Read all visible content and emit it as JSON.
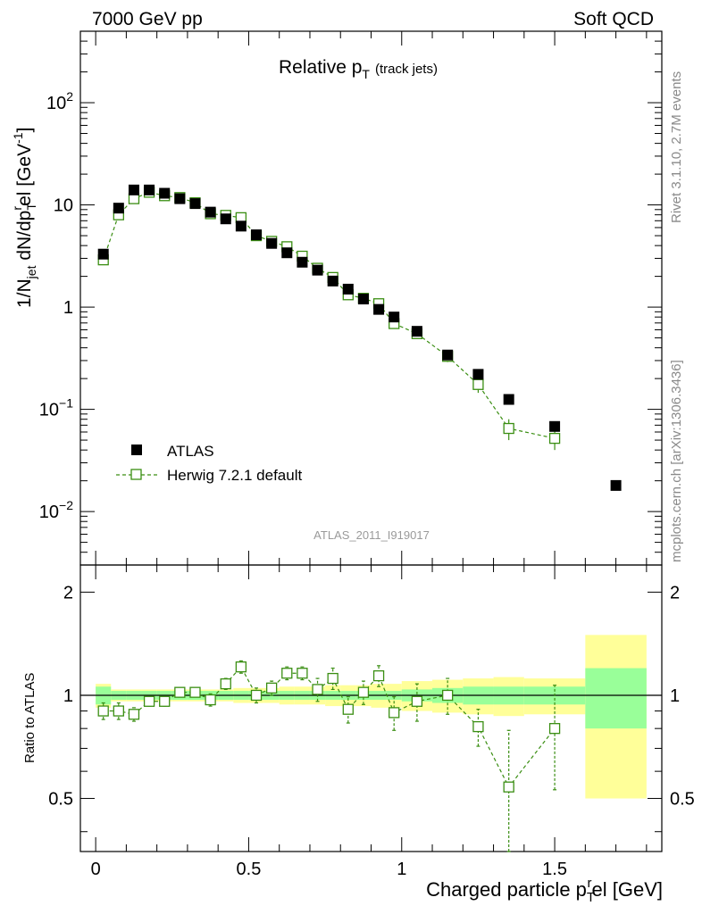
{
  "header": {
    "left": "7000 GeV pp",
    "right": "Soft QCD"
  },
  "side_labels": {
    "rivet": "Rivet 3.1.10,  2.7M events",
    "mcplots": "mcplots.cern.ch [arXiv:1306.3436]"
  },
  "main_plot": {
    "title": "Relative p",
    "title_sub": "T",
    "title_suffix": "(track jets)",
    "ylabel": "1/N",
    "ylabel_sub1": "jet",
    "ylabel_mid": " dN/dp",
    "ylabel_sub2": "T",
    "ylabel_sup2": "r",
    "ylabel_end": "el [GeV",
    "ylabel_sup3": "-1",
    "ylabel_close": "]",
    "watermark": "ATLAS_2011_I919017",
    "yticks": [
      {
        "base": "10",
        "exp": "2"
      },
      {
        "base": "10",
        "exp": ""
      },
      {
        "base": "1",
        "exp": ""
      },
      {
        "base": "10",
        "exp": "−1"
      },
      {
        "base": "10",
        "exp": "−2"
      }
    ]
  },
  "legend": {
    "atlas": "ATLAS",
    "herwig": "Herwig 7.2.1 default"
  },
  "ratio_plot": {
    "ylabel": "Ratio to ATLAS",
    "yticks": [
      "2",
      "1",
      "0.5"
    ]
  },
  "xaxis": {
    "label": "Charged particle p",
    "label_sub": "T",
    "label_sup": "r",
    "label_end": "el [GeV]",
    "ticks": [
      "0",
      "0.5",
      "1",
      "1.5"
    ]
  },
  "colors": {
    "data": "#000000",
    "mc": "#3a8e12",
    "band_inner": "#99ff99",
    "band_outer": "#ffff99"
  },
  "chart_data": {
    "type": "scatter",
    "xlim": [
      -0.05,
      1.85
    ],
    "ylim_main": [
      0.003,
      500
    ],
    "ylim_ratio": [
      0.35,
      2.4
    ],
    "yscale": "log",
    "atlas": {
      "name": "ATLAS",
      "x": [
        0.025,
        0.075,
        0.125,
        0.175,
        0.225,
        0.275,
        0.325,
        0.375,
        0.425,
        0.475,
        0.525,
        0.575,
        0.625,
        0.675,
        0.725,
        0.775,
        0.825,
        0.875,
        0.925,
        0.975,
        1.05,
        1.15,
        1.25,
        1.35,
        1.5,
        1.7
      ],
      "y": [
        3.3,
        9.3,
        14.0,
        14.0,
        13.0,
        11.5,
        10.3,
        8.5,
        7.3,
        6.2,
        5.1,
        4.2,
        3.4,
        2.75,
        2.3,
        1.8,
        1.5,
        1.2,
        0.95,
        0.8,
        0.58,
        0.34,
        0.22,
        0.125,
        0.068,
        0.018
      ]
    },
    "herwig": {
      "name": "Herwig 7.2.1 default",
      "x": [
        0.025,
        0.075,
        0.125,
        0.175,
        0.225,
        0.275,
        0.325,
        0.375,
        0.425,
        0.475,
        0.525,
        0.575,
        0.625,
        0.675,
        0.725,
        0.775,
        0.825,
        0.875,
        0.925,
        0.975,
        1.05,
        1.15,
        1.25,
        1.35,
        1.5
      ],
      "y": [
        2.9,
        8.0,
        11.5,
        13.3,
        12.3,
        11.8,
        10.5,
        8.2,
        7.9,
        7.5,
        5.0,
        4.4,
        3.9,
        3.15,
        2.4,
        1.95,
        1.32,
        1.22,
        1.08,
        0.69,
        0.55,
        0.33,
        0.175,
        0.065,
        0.052
      ],
      "yerr": [
        0.15,
        0.5,
        0.5,
        0.6,
        0.5,
        0.5,
        0.5,
        0.4,
        0.4,
        0.4,
        0.25,
        0.25,
        0.25,
        0.2,
        0.15,
        0.15,
        0.1,
        0.1,
        0.1,
        0.06,
        0.05,
        0.04,
        0.03,
        0.015,
        0.012
      ]
    },
    "ratio": {
      "x": [
        0.025,
        0.075,
        0.125,
        0.175,
        0.225,
        0.275,
        0.325,
        0.375,
        0.425,
        0.475,
        0.525,
        0.575,
        0.625,
        0.675,
        0.725,
        0.775,
        0.825,
        0.875,
        0.925,
        0.975,
        1.05,
        1.15,
        1.25,
        1.35,
        1.5
      ],
      "y": [
        0.9,
        0.9,
        0.88,
        0.96,
        0.96,
        1.02,
        1.02,
        0.97,
        1.08,
        1.21,
        1.0,
        1.05,
        1.16,
        1.16,
        1.04,
        1.12,
        0.91,
        1.02,
        1.14,
        0.89,
        0.96,
        1.0,
        0.81,
        0.54,
        0.8
      ],
      "yerr": [
        0.05,
        0.05,
        0.04,
        0.03,
        0.03,
        0.03,
        0.03,
        0.04,
        0.04,
        0.05,
        0.05,
        0.05,
        0.05,
        0.05,
        0.08,
        0.08,
        0.08,
        0.08,
        0.08,
        0.1,
        0.12,
        0.12,
        0.1,
        0.25,
        0.27
      ]
    },
    "bands": {
      "edges": [
        0.0,
        0.05,
        0.1,
        0.15,
        0.2,
        0.25,
        0.3,
        0.35,
        0.4,
        0.45,
        0.5,
        0.55,
        0.6,
        0.65,
        0.7,
        0.75,
        0.8,
        0.85,
        0.9,
        0.95,
        1.0,
        1.1,
        1.2,
        1.3,
        1.4,
        1.6,
        1.8
      ],
      "inner": [
        0.06,
        0.03,
        0.03,
        0.03,
        0.03,
        0.03,
        0.03,
        0.03,
        0.03,
        0.03,
        0.03,
        0.03,
        0.03,
        0.03,
        0.03,
        0.03,
        0.03,
        0.03,
        0.03,
        0.03,
        0.04,
        0.05,
        0.06,
        0.06,
        0.06,
        0.2
      ],
      "outer": [
        0.08,
        0.04,
        0.04,
        0.04,
        0.04,
        0.04,
        0.04,
        0.04,
        0.04,
        0.05,
        0.05,
        0.05,
        0.06,
        0.06,
        0.06,
        0.07,
        0.07,
        0.07,
        0.08,
        0.08,
        0.1,
        0.11,
        0.12,
        0.13,
        0.12,
        0.5
      ]
    }
  }
}
